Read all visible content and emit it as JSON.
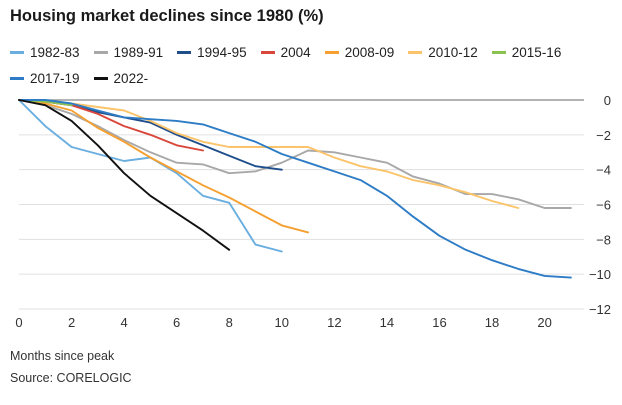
{
  "page": {
    "title": "Housing market declines since 1980 (%)",
    "xlabel": "Months since peak",
    "source": "Source: CORELOGIC"
  },
  "chart_data": {
    "type": "line",
    "title": "Housing market declines since 1980 (%)",
    "xlabel": "Months since peak",
    "ylabel": "",
    "xlim": [
      0,
      21.5
    ],
    "ylim": [
      -12,
      0
    ],
    "xticks": [
      0,
      2,
      4,
      6,
      8,
      10,
      12,
      14,
      16,
      18,
      20
    ],
    "yticks": [
      0,
      -2,
      -4,
      -6,
      -8,
      -10,
      -12
    ],
    "grid": "horizontal",
    "legend_position": "top",
    "series": [
      {
        "name": "1982-83",
        "color": "#6aaee0",
        "x": [
          0,
          1,
          2,
          3,
          4,
          5,
          6,
          7,
          8,
          9,
          10
        ],
        "y": [
          0,
          -1.5,
          -2.7,
          -3.1,
          -3.5,
          -3.3,
          -4.2,
          -5.5,
          -5.9,
          -8.3,
          -8.7
        ]
      },
      {
        "name": "1989-91",
        "color": "#a8a8a8",
        "x": [
          0,
          1,
          2,
          3,
          4,
          5,
          6,
          7,
          8,
          9,
          10,
          11,
          12,
          13,
          14,
          15,
          16,
          17,
          18,
          19,
          20,
          21
        ],
        "y": [
          0,
          -0.3,
          -0.8,
          -1.5,
          -2.3,
          -3.0,
          -3.6,
          -3.7,
          -4.2,
          -4.1,
          -3.6,
          -2.9,
          -3.0,
          -3.3,
          -3.6,
          -4.4,
          -4.8,
          -5.4,
          -5.4,
          -5.7,
          -6.2,
          -6.2
        ]
      },
      {
        "name": "1994-95",
        "color": "#1f4e8c",
        "x": [
          0,
          1,
          2,
          3,
          4,
          5,
          6,
          7,
          8,
          9,
          10
        ],
        "y": [
          0,
          -0.1,
          -0.3,
          -0.7,
          -1.0,
          -1.3,
          -2.0,
          -2.6,
          -3.2,
          -3.8,
          -4.0
        ]
      },
      {
        "name": "2004",
        "color": "#d9473b",
        "x": [
          0,
          1,
          2,
          3,
          4,
          5,
          6,
          7
        ],
        "y": [
          0,
          -0.1,
          -0.3,
          -0.8,
          -1.5,
          -2.0,
          -2.6,
          -2.9
        ]
      },
      {
        "name": "2008-09",
        "color": "#f5a031",
        "x": [
          0,
          1,
          2,
          3,
          4,
          5,
          6,
          7,
          8,
          9,
          10,
          11
        ],
        "y": [
          0,
          -0.2,
          -0.6,
          -1.6,
          -2.4,
          -3.3,
          -4.1,
          -4.9,
          -5.6,
          -6.4,
          -7.2,
          -7.6
        ]
      },
      {
        "name": "2010-12",
        "color": "#fbc46a",
        "x": [
          0,
          1,
          2,
          3,
          4,
          5,
          6,
          7,
          8,
          9,
          10,
          11,
          12,
          13,
          14,
          15,
          16,
          17,
          18,
          19
        ],
        "y": [
          0,
          -0.1,
          -0.2,
          -0.4,
          -0.6,
          -1.2,
          -1.9,
          -2.4,
          -2.7,
          -2.7,
          -2.7,
          -2.7,
          -3.3,
          -3.8,
          -4.1,
          -4.6,
          -4.9,
          -5.3,
          -5.8,
          -6.2
        ]
      },
      {
        "name": "2015-16",
        "color": "#8cc350",
        "x": [
          0,
          1,
          2
        ],
        "y": [
          0,
          -0.1,
          -0.3
        ]
      },
      {
        "name": "2017-19",
        "color": "#2d7cc5",
        "x": [
          0,
          1,
          2,
          3,
          4,
          5,
          6,
          7,
          8,
          9,
          10,
          11,
          12,
          13,
          14,
          15,
          16,
          17,
          18,
          19,
          20,
          21
        ],
        "y": [
          0,
          0,
          -0.2,
          -0.6,
          -1.0,
          -1.1,
          -1.2,
          -1.4,
          -1.9,
          -2.4,
          -3.1,
          -3.6,
          -4.1,
          -4.6,
          -5.5,
          -6.7,
          -7.8,
          -8.6,
          -9.2,
          -9.7,
          -10.1,
          -10.2
        ]
      },
      {
        "name": "2022-",
        "color": "#111111",
        "x": [
          0,
          1,
          2,
          3,
          4,
          5,
          6,
          7,
          8
        ],
        "y": [
          0,
          -0.3,
          -1.2,
          -2.6,
          -4.2,
          -5.5,
          -6.5,
          -7.5,
          -8.6
        ]
      }
    ]
  }
}
